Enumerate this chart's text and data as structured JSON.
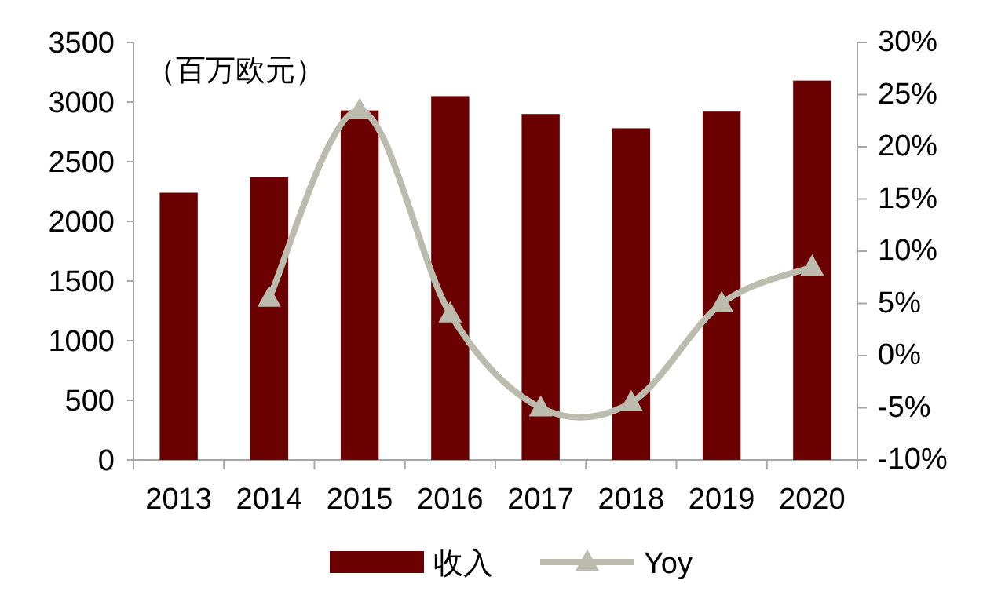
{
  "chart_data": {
    "type": "bar",
    "categories": [
      "2013",
      "2014",
      "2015",
      "2016",
      "2017",
      "2018",
      "2019",
      "2020"
    ],
    "series": [
      {
        "name": "收入",
        "color": "#6b0000",
        "values": [
          2240,
          2370,
          2930,
          3050,
          2900,
          2780,
          2920,
          3180
        ]
      },
      {
        "name": "Yoy",
        "type": "line",
        "axis": "y2",
        "color": "#bcbcae",
        "marker": "triangle",
        "values": [
          null,
          5.5,
          23.5,
          4,
          -5,
          -4.5,
          5,
          8.5
        ]
      }
    ],
    "ylim": [
      0,
      3500
    ],
    "yticks": [
      0,
      500,
      1000,
      1500,
      2000,
      2500,
      3000,
      3500
    ],
    "y2lim": [
      -10,
      30
    ],
    "y2ticks": [
      {
        "value": -10,
        "label": "-10%"
      },
      {
        "value": -5,
        "label": "-5%"
      },
      {
        "value": 0,
        "label": "0%"
      },
      {
        "value": 5,
        "label": "5%"
      },
      {
        "value": 10,
        "label": "10%"
      },
      {
        "value": 15,
        "label": "15%"
      },
      {
        "value": 20,
        "label": "20%"
      },
      {
        "value": 25,
        "label": "25%"
      },
      {
        "value": 30,
        "label": "30%"
      }
    ],
    "annotations": [
      "（百万欧元）"
    ],
    "legend": "bottom"
  }
}
